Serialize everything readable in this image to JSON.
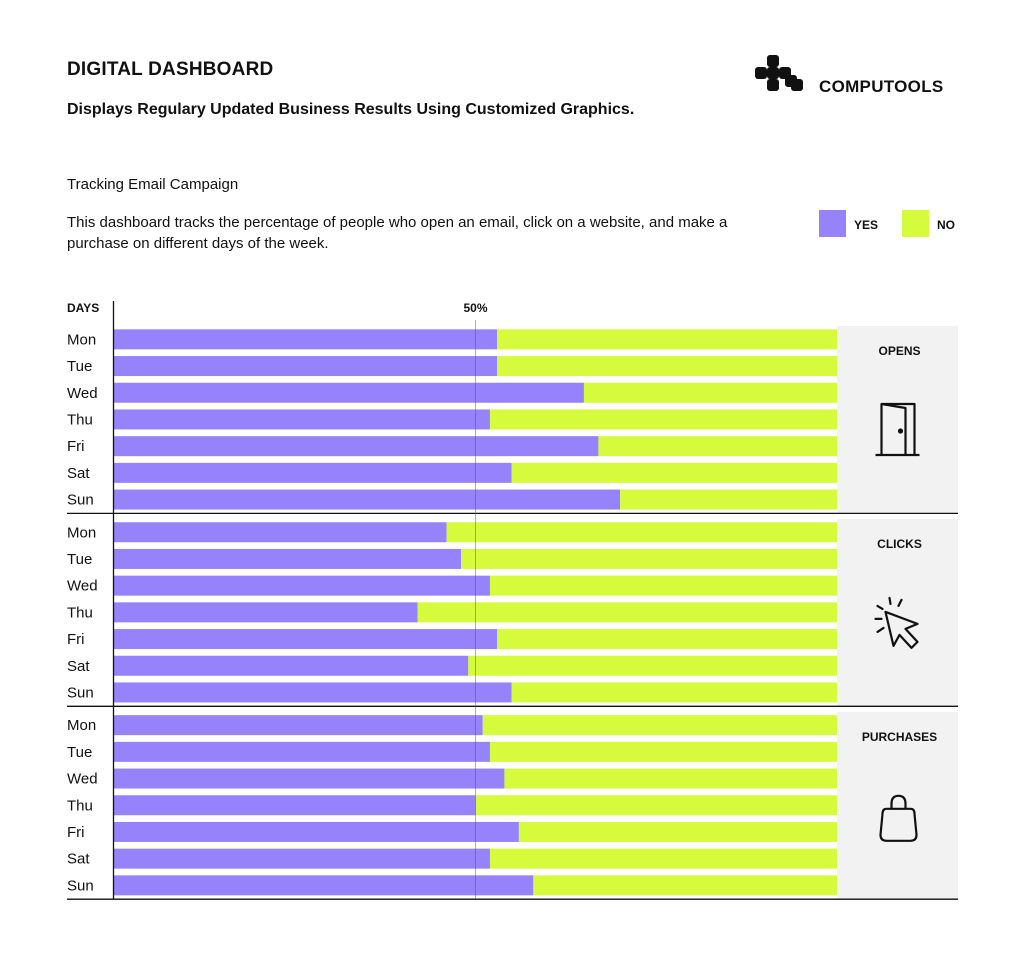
{
  "header": {
    "title": "DIGITAL DASHBOARD",
    "subtitle": "Displays Regulary Updated Business Results Using Customized Graphics.",
    "brand": "COMPUTOOLS"
  },
  "section_title": "Tracking Email Campaign",
  "description": "This dashboard tracks the percentage of people who open an email, click on a website, and make a purchase on different days of the week.",
  "colors": {
    "yes": "#9683fb",
    "no": "#d5fb3c",
    "panel": "#f2f2f2",
    "axis": "#111111"
  },
  "chart_data": {
    "type": "bar",
    "orientation": "horizontal-stacked-100",
    "axis_label": "DAYS",
    "reference_label": "50%",
    "legend": [
      "YES",
      "NO"
    ],
    "legend_placement": "top-right",
    "xlim": [
      0,
      100
    ],
    "groups": [
      {
        "name": "OPENS",
        "icon": "door-icon",
        "categories": [
          "Mon",
          "Tue",
          "Wed",
          "Thu",
          "Fri",
          "Sat",
          "Sun"
        ],
        "series": [
          {
            "name": "YES",
            "values": [
              53,
              53,
              65,
              52,
              67,
              55,
              70
            ]
          },
          {
            "name": "NO",
            "values": [
              47,
              47,
              35,
              48,
              33,
              45,
              30
            ]
          }
        ]
      },
      {
        "name": "CLICKS",
        "icon": "cursor-click-icon",
        "categories": [
          "Mon",
          "Tue",
          "Wed",
          "Thu",
          "Fri",
          "Sat",
          "Sun"
        ],
        "series": [
          {
            "name": "YES",
            "values": [
              46,
              48,
              52,
              42,
              53,
              49,
              55
            ]
          },
          {
            "name": "NO",
            "values": [
              54,
              52,
              48,
              58,
              47,
              51,
              45
            ]
          }
        ]
      },
      {
        "name": "PURCHASES",
        "icon": "shopping-bag-icon",
        "categories": [
          "Mon",
          "Tue",
          "Wed",
          "Thu",
          "Fri",
          "Sat",
          "Sun"
        ],
        "series": [
          {
            "name": "YES",
            "values": [
              51,
              52,
              54,
              50,
              56,
              52,
              58
            ]
          },
          {
            "name": "NO",
            "values": [
              49,
              48,
              46,
              50,
              44,
              48,
              42
            ]
          }
        ]
      }
    ]
  }
}
